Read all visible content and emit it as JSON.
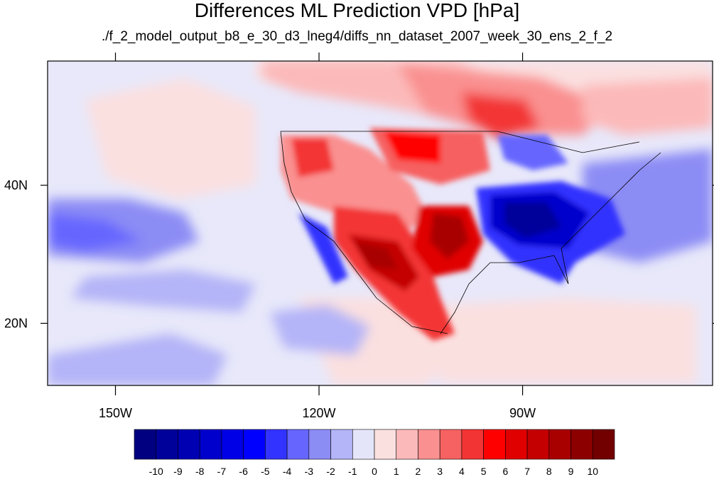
{
  "title": "Differences ML Prediction VPD [hPa]",
  "subtitle": "./f_2_model_output_b8_e_30_d3_lneg4/diffs_nn_dataset_2007_week_30_ens_2_f_2",
  "map": {
    "lon_range": [
      -160,
      -62
    ],
    "lat_range": [
      11,
      58
    ],
    "x_ticks": [
      {
        "value": -150,
        "label": "150W"
      },
      {
        "value": -120,
        "label": "120W"
      },
      {
        "value": -90,
        "label": "90W"
      }
    ],
    "y_ticks": [
      {
        "value": 40,
        "label": "40N"
      },
      {
        "value": 20,
        "label": "20N"
      }
    ]
  },
  "colorbar": {
    "labels": [
      "-10",
      "-9",
      "-8",
      "-7",
      "-6",
      "-5",
      "-4",
      "-3",
      "-2",
      "-1",
      "0",
      "1",
      "2",
      "3",
      "4",
      "5",
      "6",
      "7",
      "8",
      "9",
      "10"
    ],
    "colors": [
      "#000080",
      "#00009a",
      "#0000b3",
      "#0000cc",
      "#0000e6",
      "#0000ff",
      "#3333ff",
      "#6666ff",
      "#8c8cf5",
      "#b4b4f8",
      "#e5e5fa",
      "#fbe0e0",
      "#fcb9b9",
      "#fa9090",
      "#f66161",
      "#f33434",
      "#ff0000",
      "#e00000",
      "#c40000",
      "#a80000",
      "#8c0000",
      "#720000"
    ]
  }
}
